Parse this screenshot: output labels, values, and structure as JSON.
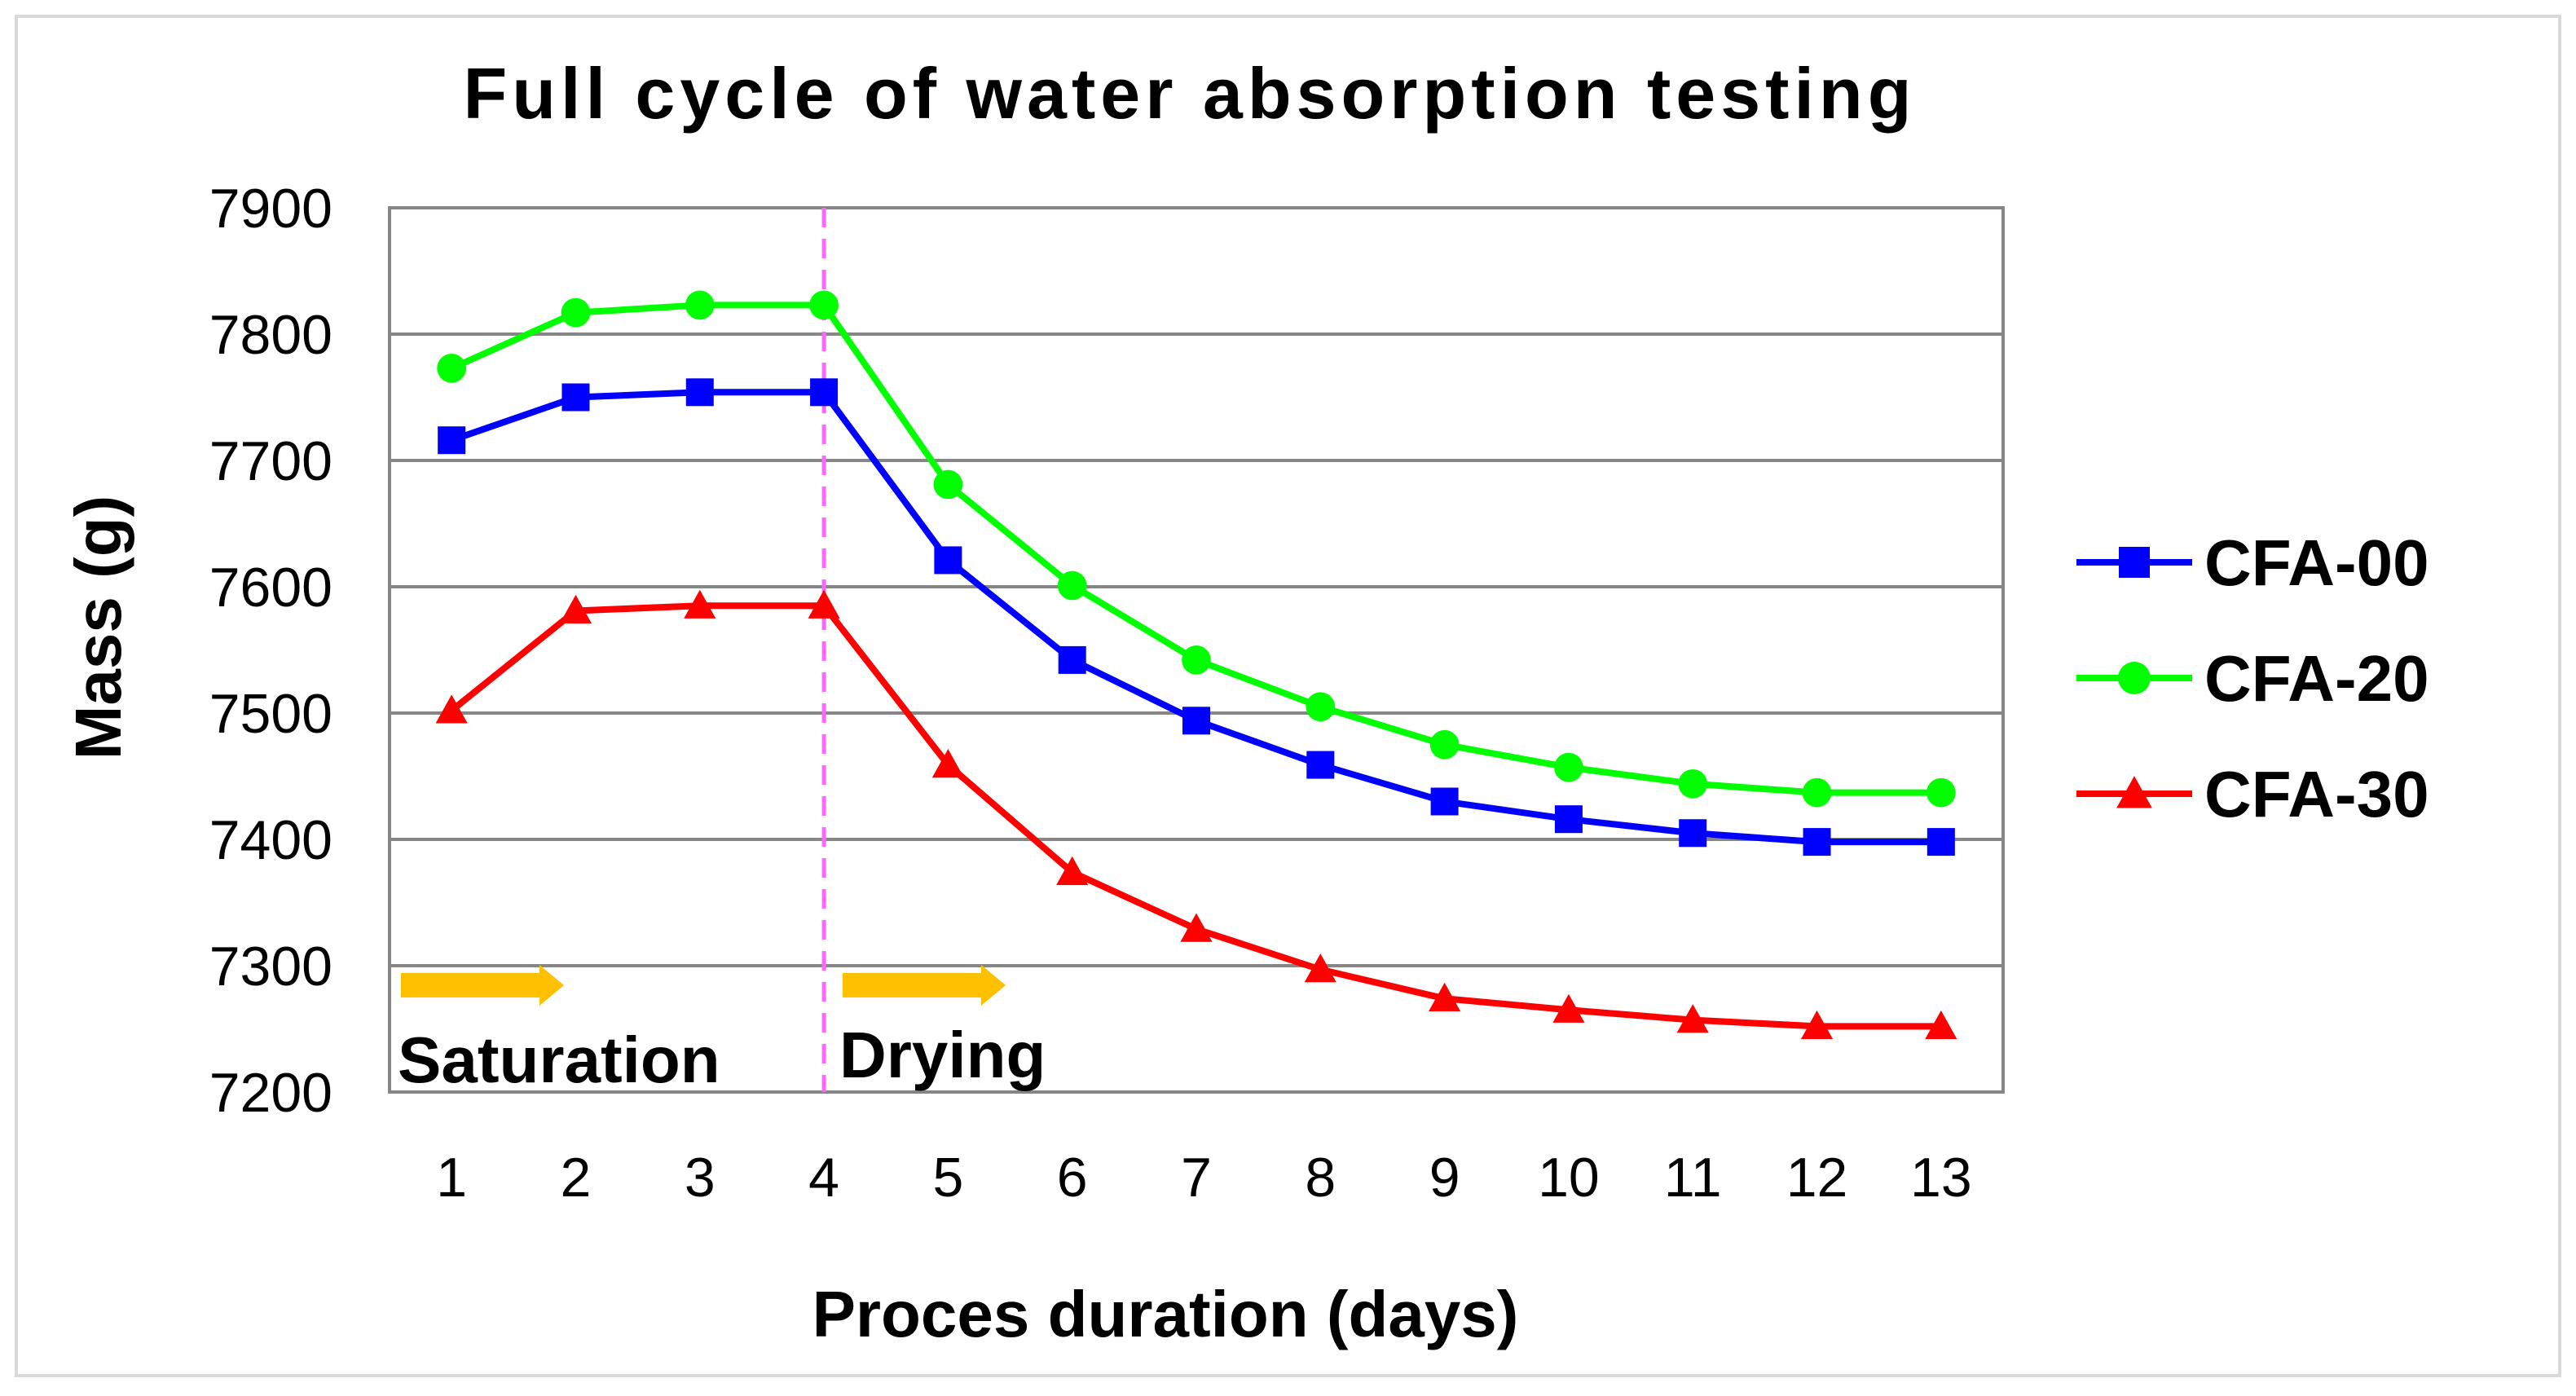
{
  "chart_data": {
    "type": "line",
    "title": "Full cycle of water absorption testing",
    "xlabel": "Proces duration (days)",
    "ylabel": "Mass (g)",
    "categories": [
      "1",
      "2",
      "3",
      "4",
      "5",
      "6",
      "7",
      "8",
      "9",
      "10",
      "11",
      "12",
      "13"
    ],
    "ylim": [
      7200,
      7900
    ],
    "yticks": [
      7900,
      7800,
      7700,
      7600,
      7500,
      7400,
      7300,
      7200
    ],
    "grid": true,
    "legend_position": "right",
    "series": [
      {
        "name": "CFA-00",
        "color": "#0000ff",
        "marker": "square",
        "values": [
          7716,
          7750,
          7754,
          7754,
          7621,
          7542,
          7494,
          7459,
          7430,
          7416,
          7405,
          7398,
          7398
        ]
      },
      {
        "name": "CFA-20",
        "color": "#00ff00",
        "marker": "circle",
        "values": [
          7773,
          7817,
          7823,
          7823,
          7681,
          7601,
          7542,
          7505,
          7475,
          7457,
          7444,
          7437,
          7437
        ]
      },
      {
        "name": "CFA-30",
        "color": "#ff0000",
        "marker": "triangle",
        "values": [
          7502,
          7581,
          7585,
          7585,
          7459,
          7374,
          7329,
          7297,
          7274,
          7265,
          7257,
          7252,
          7252
        ]
      }
    ],
    "annotations": {
      "divider_after_category": "4",
      "divider_color": "#ff66ff",
      "arrow_color": "#ffc000",
      "phase_labels": [
        "Saturation",
        "Drying"
      ]
    }
  }
}
